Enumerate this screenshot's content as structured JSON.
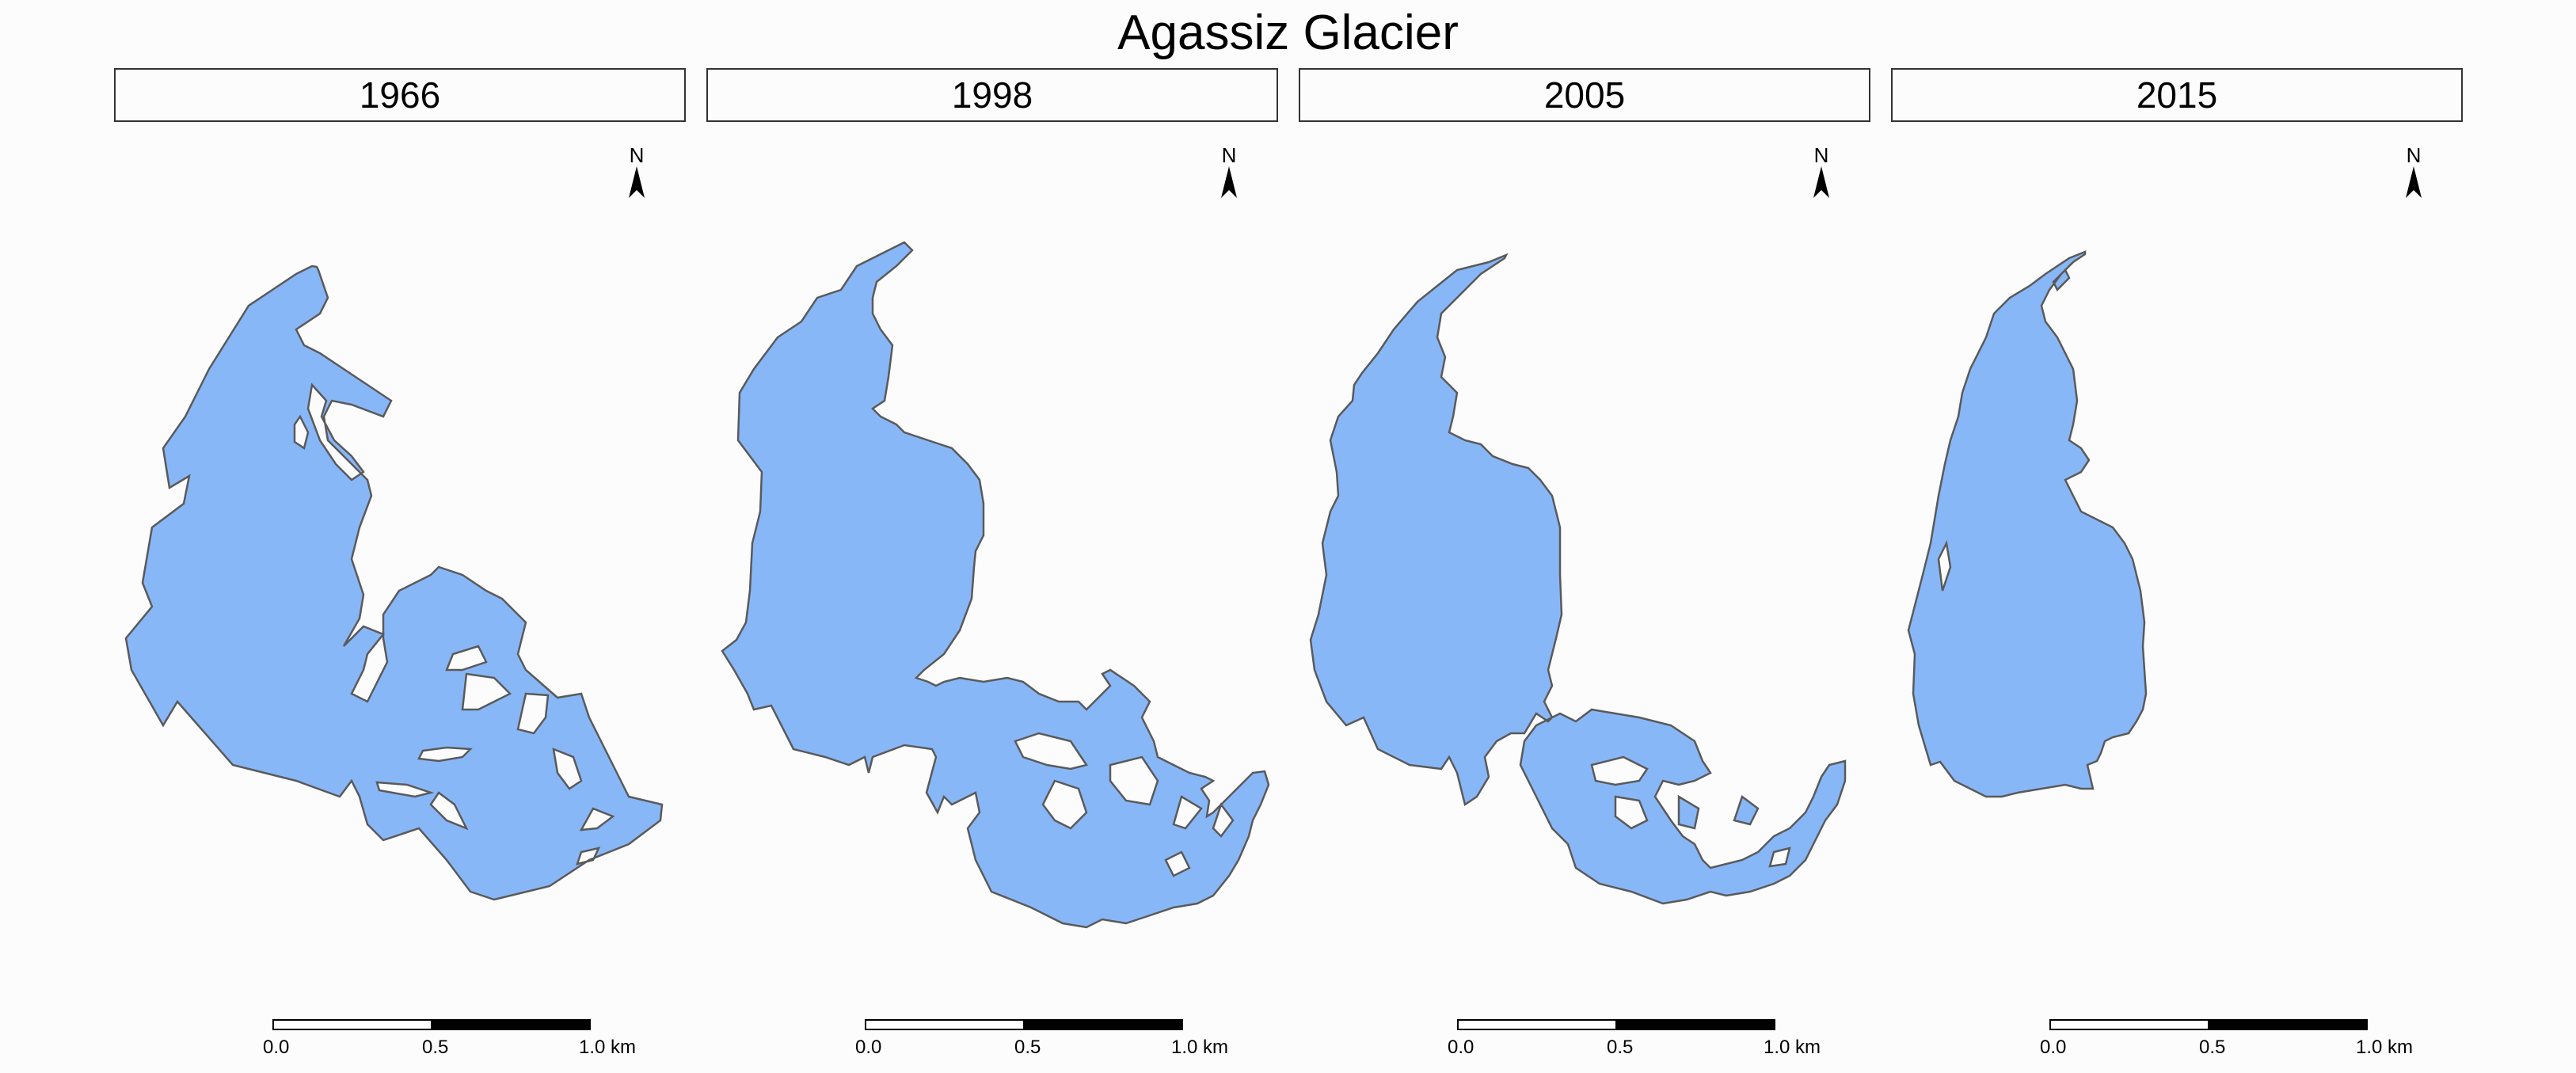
{
  "title": "Agassiz Glacier",
  "north_label": "N",
  "glacier_fill": "#88b7f8",
  "outline_color": "#5a5a5a",
  "scale_labels": [
    "0.0",
    "0.5",
    "1.0 km"
  ],
  "panels": [
    {
      "year": "1966"
    },
    {
      "year": "1998"
    },
    {
      "year": "2005"
    },
    {
      "year": "2015"
    }
  ]
}
